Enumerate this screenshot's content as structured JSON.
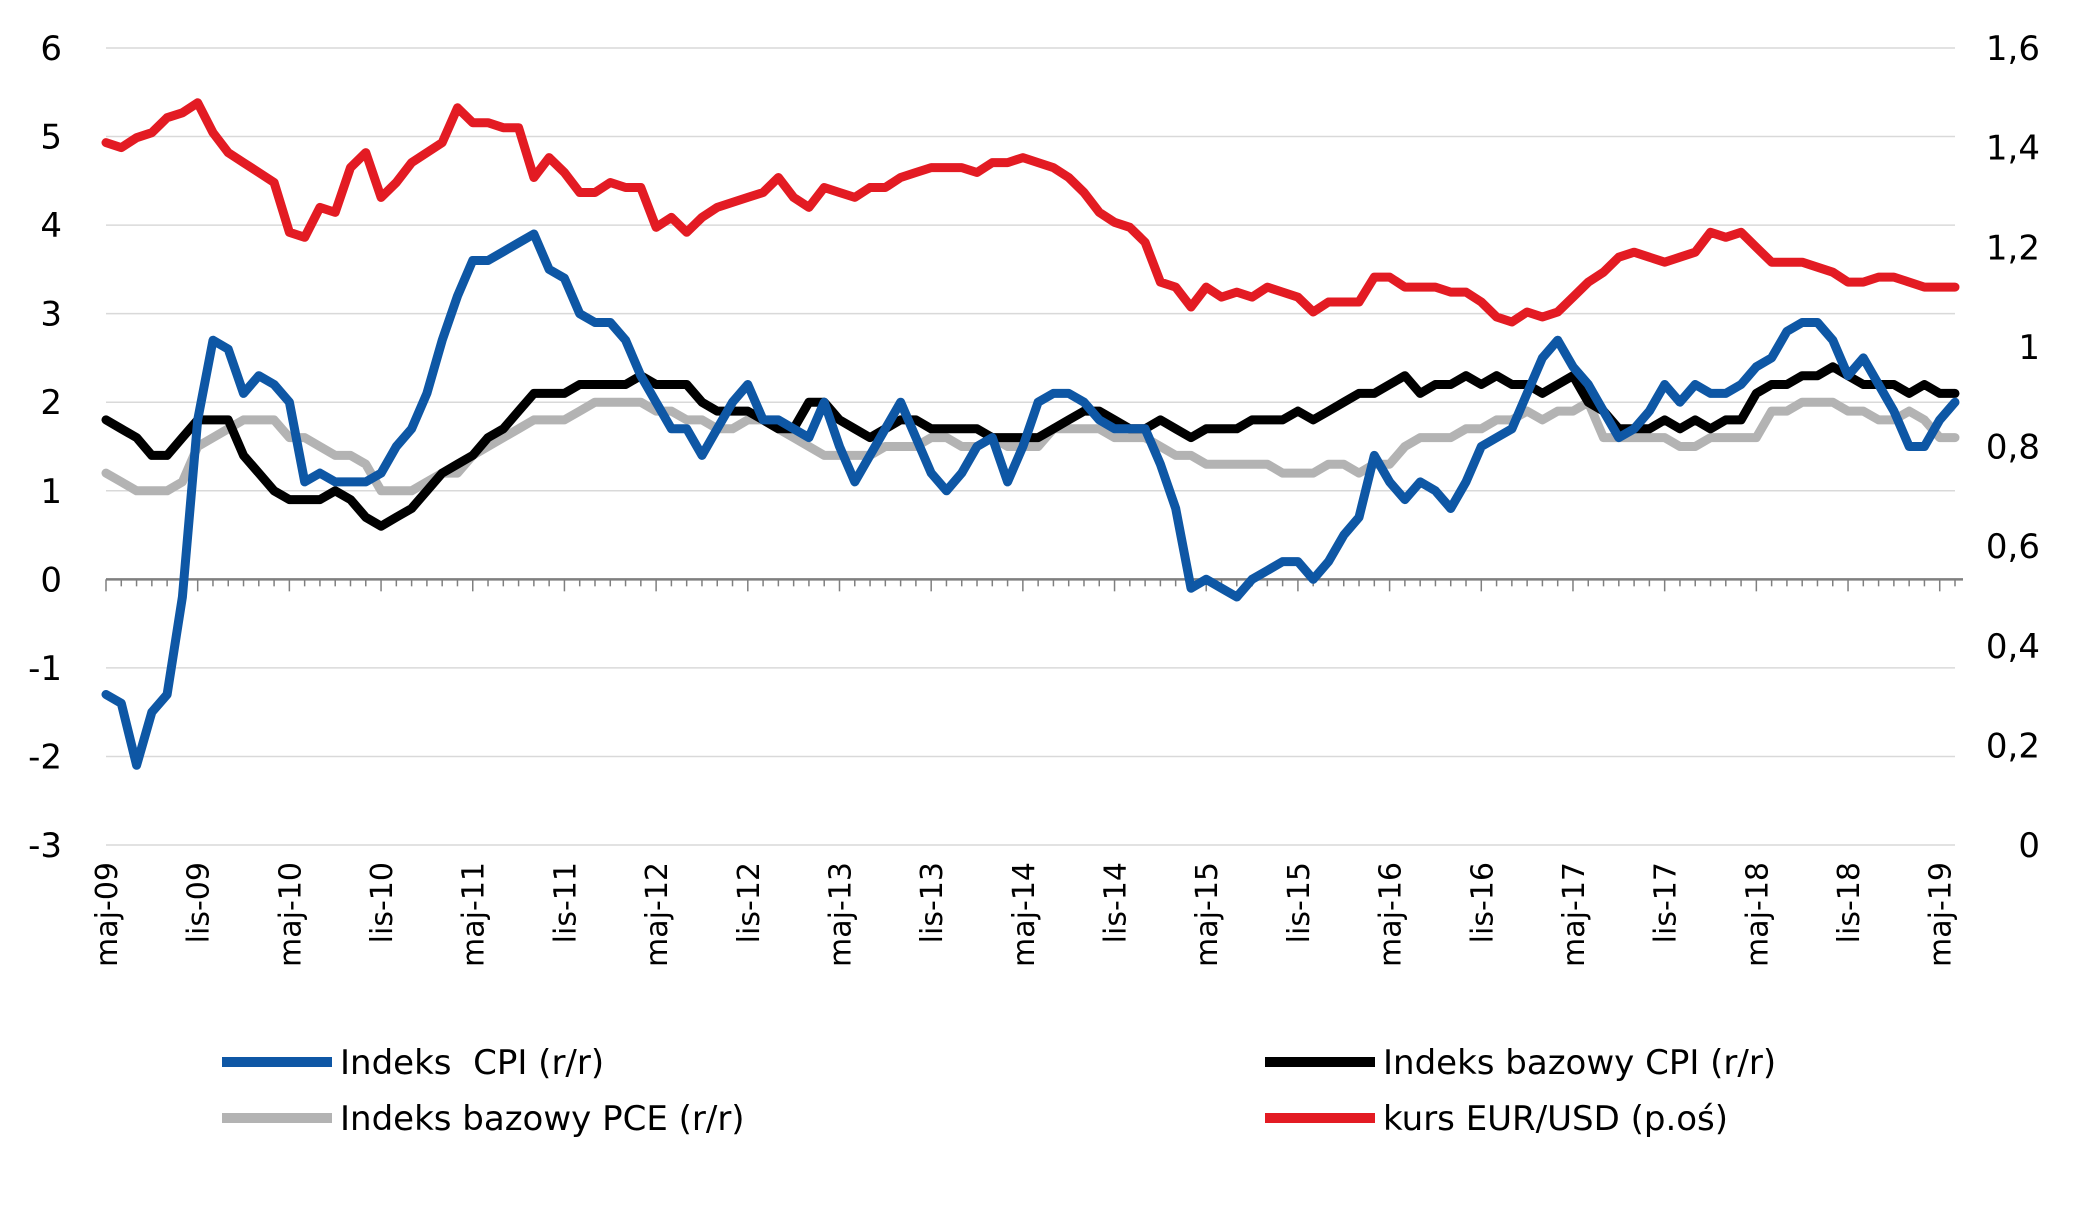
{
  "chart_data": {
    "type": "line",
    "title": "",
    "xlabel": "",
    "ylabel": "",
    "x_start": "2009-05",
    "x_end": "2019-05",
    "x_ticks": [
      "maj-09",
      "lis-09",
      "maj-10",
      "lis-10",
      "maj-11",
      "lis-11",
      "maj-12",
      "lis-12",
      "maj-13",
      "lis-13",
      "maj-14",
      "lis-14",
      "maj-15",
      "lis-15",
      "maj-16",
      "lis-16",
      "maj-17",
      "lis-17",
      "maj-18",
      "lis-18",
      "maj-19"
    ],
    "y_left": {
      "min": -3,
      "max": 6,
      "ticks": [
        "-3",
        "-2",
        "-1",
        "0",
        "1",
        "2",
        "3",
        "4",
        "5",
        "6"
      ]
    },
    "y_right": {
      "min": 0,
      "max": 1.6,
      "ticks": [
        "0",
        "0,2",
        "0,4",
        "0,6",
        "0,8",
        "1",
        "1,2",
        "1,4",
        "1,6"
      ]
    },
    "grid": "horizontal",
    "legend_position": "bottom",
    "series": [
      {
        "name": "Indeks  CPI (r/r)",
        "color": "#0e57a5",
        "axis": "left",
        "values": [
          -1.3,
          -1.4,
          -2.1,
          -1.5,
          -1.3,
          -0.2,
          1.8,
          2.7,
          2.6,
          2.1,
          2.3,
          2.2,
          2.0,
          1.1,
          1.2,
          1.1,
          1.1,
          1.1,
          1.2,
          1.5,
          1.7,
          2.1,
          2.7,
          3.2,
          3.6,
          3.6,
          3.7,
          3.8,
          3.9,
          3.5,
          3.4,
          3.0,
          2.9,
          2.9,
          2.7,
          2.3,
          2.0,
          1.7,
          1.7,
          1.4,
          1.7,
          2.0,
          2.2,
          1.8,
          1.8,
          1.7,
          1.6,
          2.0,
          1.5,
          1.1,
          1.4,
          1.7,
          2.0,
          1.6,
          1.2,
          1.0,
          1.2,
          1.5,
          1.6,
          1.1,
          1.5,
          2.0,
          2.1,
          2.1,
          2.0,
          1.8,
          1.7,
          1.7,
          1.7,
          1.3,
          0.8,
          -0.1,
          0.0,
          -0.1,
          -0.2,
          0.0,
          0.1,
          0.2,
          0.2,
          0.0,
          0.2,
          0.5,
          0.7,
          1.4,
          1.1,
          0.9,
          1.1,
          1.0,
          0.8,
          1.1,
          1.5,
          1.6,
          1.7,
          2.1,
          2.5,
          2.7,
          2.4,
          2.2,
          1.9,
          1.6,
          1.7,
          1.9,
          2.2,
          2.0,
          2.2,
          2.1,
          2.1,
          2.2,
          2.4,
          2.5,
          2.8,
          2.9,
          2.9,
          2.7,
          2.3,
          2.5,
          2.2,
          1.9,
          1.5,
          1.5,
          1.8,
          2.0
        ]
      },
      {
        "name": "Indeks bazowy CPI (r/r)",
        "color": "#000000",
        "axis": "left",
        "values": [
          1.8,
          1.7,
          1.6,
          1.4,
          1.4,
          1.6,
          1.8,
          1.8,
          1.8,
          1.4,
          1.2,
          1.0,
          0.9,
          0.9,
          0.9,
          1.0,
          0.9,
          0.7,
          0.6,
          0.7,
          0.8,
          1.0,
          1.2,
          1.3,
          1.4,
          1.6,
          1.7,
          1.9,
          2.1,
          2.1,
          2.1,
          2.2,
          2.2,
          2.2,
          2.2,
          2.3,
          2.2,
          2.2,
          2.2,
          2.0,
          1.9,
          1.9,
          1.9,
          1.8,
          1.7,
          1.7,
          2.0,
          2.0,
          1.8,
          1.7,
          1.6,
          1.7,
          1.8,
          1.8,
          1.7,
          1.7,
          1.7,
          1.7,
          1.6,
          1.6,
          1.6,
          1.6,
          1.7,
          1.8,
          1.9,
          1.9,
          1.8,
          1.7,
          1.7,
          1.8,
          1.7,
          1.6,
          1.7,
          1.7,
          1.7,
          1.8,
          1.8,
          1.8,
          1.9,
          1.8,
          1.9,
          2.0,
          2.1,
          2.1,
          2.2,
          2.3,
          2.1,
          2.2,
          2.2,
          2.3,
          2.2,
          2.3,
          2.2,
          2.2,
          2.1,
          2.2,
          2.3,
          2.0,
          1.9,
          1.7,
          1.7,
          1.7,
          1.8,
          1.7,
          1.8,
          1.7,
          1.8,
          1.8,
          2.1,
          2.2,
          2.2,
          2.3,
          2.3,
          2.4,
          2.3,
          2.2,
          2.2,
          2.2,
          2.1,
          2.2,
          2.1,
          2.1
        ]
      },
      {
        "name": "Indeks bazowy PCE (r/r)",
        "color": "#b3b3b3",
        "axis": "left",
        "values": [
          1.2,
          1.1,
          1.0,
          1.0,
          1.0,
          1.1,
          1.5,
          1.6,
          1.7,
          1.8,
          1.8,
          1.8,
          1.6,
          1.6,
          1.5,
          1.4,
          1.4,
          1.3,
          1.0,
          1.0,
          1.0,
          1.1,
          1.2,
          1.2,
          1.4,
          1.5,
          1.6,
          1.7,
          1.8,
          1.8,
          1.8,
          1.9,
          2.0,
          2.0,
          2.0,
          2.0,
          1.9,
          1.9,
          1.8,
          1.8,
          1.7,
          1.7,
          1.8,
          1.8,
          1.7,
          1.6,
          1.5,
          1.4,
          1.4,
          1.4,
          1.4,
          1.5,
          1.5,
          1.5,
          1.6,
          1.6,
          1.5,
          1.5,
          1.6,
          1.5,
          1.5,
          1.5,
          1.7,
          1.7,
          1.7,
          1.7,
          1.6,
          1.6,
          1.6,
          1.5,
          1.4,
          1.4,
          1.3,
          1.3,
          1.3,
          1.3,
          1.3,
          1.2,
          1.2,
          1.2,
          1.3,
          1.3,
          1.2,
          1.3,
          1.3,
          1.5,
          1.6,
          1.6,
          1.6,
          1.7,
          1.7,
          1.8,
          1.8,
          1.9,
          1.8,
          1.9,
          1.9,
          2.0,
          1.6,
          1.6,
          1.6,
          1.6,
          1.6,
          1.5,
          1.5,
          1.6,
          1.6,
          1.6,
          1.6,
          1.9,
          1.9,
          2.0,
          2.0,
          2.0,
          1.9,
          1.9,
          1.8,
          1.8,
          1.9,
          1.8,
          1.6,
          1.6
        ]
      },
      {
        "name": "kurs EUR/USD (p.oś)",
        "color": "#e31b23",
        "axis": "right",
        "values": [
          1.41,
          1.4,
          1.42,
          1.43,
          1.46,
          1.47,
          1.49,
          1.43,
          1.39,
          1.37,
          1.35,
          1.33,
          1.23,
          1.22,
          1.28,
          1.27,
          1.36,
          1.39,
          1.3,
          1.33,
          1.37,
          1.39,
          1.41,
          1.48,
          1.45,
          1.45,
          1.44,
          1.44,
          1.34,
          1.38,
          1.35,
          1.31,
          1.31,
          1.33,
          1.32,
          1.32,
          1.24,
          1.26,
          1.23,
          1.26,
          1.28,
          1.29,
          1.3,
          1.31,
          1.34,
          1.3,
          1.28,
          1.32,
          1.31,
          1.3,
          1.32,
          1.32,
          1.34,
          1.35,
          1.36,
          1.36,
          1.36,
          1.35,
          1.37,
          1.37,
          1.38,
          1.37,
          1.36,
          1.34,
          1.31,
          1.27,
          1.25,
          1.24,
          1.21,
          1.13,
          1.12,
          1.08,
          1.12,
          1.1,
          1.11,
          1.1,
          1.12,
          1.11,
          1.1,
          1.07,
          1.09,
          1.09,
          1.09,
          1.14,
          1.14,
          1.12,
          1.12,
          1.12,
          1.11,
          1.11,
          1.09,
          1.06,
          1.05,
          1.07,
          1.06,
          1.07,
          1.1,
          1.13,
          1.15,
          1.18,
          1.19,
          1.18,
          1.17,
          1.18,
          1.19,
          1.23,
          1.22,
          1.23,
          1.2,
          1.17,
          1.17,
          1.17,
          1.16,
          1.15,
          1.13,
          1.13,
          1.14,
          1.14,
          1.13,
          1.12,
          1.12,
          1.12
        ]
      }
    ]
  }
}
